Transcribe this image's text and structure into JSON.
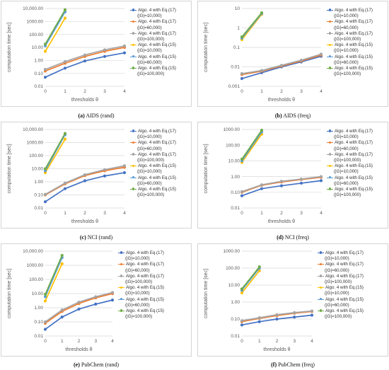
{
  "colors": {
    "eq17_10000": "#4472c4",
    "eq17_60000": "#ed7d31",
    "eq17_100000": "#a5a5a5",
    "eq15_10000": "#ffc000",
    "eq15_60000": "#5b9bd5",
    "eq15_100000": "#70ad47",
    "grid": "#d9d9d9",
    "border": "#d4d4d4"
  },
  "chart_data": [
    {
      "type": "line",
      "label": "(a)",
      "caption": "AIDS (rand)",
      "xlabel": "thresholds  θ",
      "ylabel": "computation time [sec]",
      "x": [
        0,
        1,
        2,
        3,
        4
      ],
      "ylog": true,
      "ylim": [
        0.01,
        10000
      ],
      "yticks": [
        0.01,
        0.1,
        1,
        10,
        100,
        1000,
        10000
      ],
      "ytick_labels": [
        "0.01",
        "0.10",
        "1.00",
        "10.00",
        "100.00",
        "1000.00",
        "10,000.00"
      ],
      "series": [
        {
          "name_line1": "Algo. 4 with Eq.(17)",
          "name_line2": "(|G|=10,000)",
          "values": [
            0.05,
            0.25,
            0.9,
            2.0,
            3.8
          ]
        },
        {
          "name_line1": "Algo. 4 with Eq.(17)",
          "name_line2": "(|G|=60,000)",
          "values": [
            0.15,
            0.6,
            2.0,
            5.0,
            10.0
          ]
        },
        {
          "name_line1": "Algo. 4 with Eq.(17)",
          "name_line2": "(|G|=100,000)",
          "values": [
            0.2,
            0.8,
            2.6,
            6.5,
            13.0
          ]
        },
        {
          "name_line1": "Algo. 4 with Eq.(15)",
          "name_line2": "(|G|=10,000)",
          "values": [
            5.0,
            1800.0,
            null,
            null,
            null
          ]
        },
        {
          "name_line1": "Algo. 4 with Eq.(15)",
          "name_line2": "(|G|=60,000)",
          "values": [
            13.0,
            5500.0,
            null,
            null,
            null
          ]
        },
        {
          "name_line1": "Algo. 4 with Eq.(15)",
          "name_line2": "(|G|=100,000)",
          "values": [
            18.0,
            8000.0,
            null,
            null,
            null
          ]
        }
      ]
    },
    {
      "type": "line",
      "label": "(b)",
      "caption": "AIDS (freq)",
      "xlabel": "thresholds  θ",
      "ylabel": "computation time [sec]",
      "x": [
        0,
        1,
        2,
        3,
        4
      ],
      "ylog": true,
      "ylim": [
        0.001,
        10
      ],
      "yticks": [
        0.001,
        0.01,
        0.1,
        1,
        10
      ],
      "ytick_labels": [
        "0.001",
        "0.01",
        "0.1",
        "1",
        "10"
      ],
      "series": [
        {
          "name_line1": "Algo. 4 with Eq.(17)",
          "name_line2": "(|G|=10,000)",
          "values": [
            0.0025,
            0.005,
            0.01,
            0.018,
            0.035
          ]
        },
        {
          "name_line1": "Algo. 4 with Eq.(17)",
          "name_line2": "(|G|=60,000)",
          "values": [
            0.004,
            0.006,
            0.011,
            0.02,
            0.04
          ]
        },
        {
          "name_line1": "Algo. 4 with Eq.(17)",
          "name_line2": "(|G|=100,000)",
          "values": [
            0.0045,
            0.0065,
            0.012,
            0.022,
            0.045
          ]
        },
        {
          "name_line1": "Algo. 4 with Eq.(15)",
          "name_line2": "(|G|=10,000)",
          "values": [
            0.25,
            5.0,
            null,
            null,
            null
          ]
        },
        {
          "name_line1": "Algo. 4 with Eq.(15)",
          "name_line2": "(|G|=60,000)",
          "values": [
            0.3,
            5.5,
            null,
            null,
            null
          ]
        },
        {
          "name_line1": "Algo. 4 with Eq.(15)",
          "name_line2": "(|G|=100,000)",
          "values": [
            0.35,
            6.0,
            null,
            null,
            null
          ]
        }
      ]
    },
    {
      "type": "line",
      "label": "(c)",
      "caption": "NCI (rand)",
      "xlabel": "thresholds  θ",
      "ylabel": "computation time [sec]",
      "x": [
        0,
        1,
        2,
        3,
        4
      ],
      "ylog": true,
      "ylim": [
        0.01,
        10000
      ],
      "yticks": [
        0.01,
        0.1,
        1,
        10,
        100,
        1000,
        10000
      ],
      "ytick_labels": [
        "0.01",
        "0.10",
        "1.00",
        "10.00",
        "100.00",
        "1000.00",
        "10,000.00"
      ],
      "series": [
        {
          "name_line1": "Algo. 4 with Eq.(17)",
          "name_line2": "(|G|=10,000)",
          "values": [
            0.03,
            0.3,
            1.2,
            2.8,
            5.0
          ]
        },
        {
          "name_line1": "Algo. 4 with Eq.(17)",
          "name_line2": "(|G|=60,000)",
          "values": [
            0.1,
            0.7,
            3.0,
            7.0,
            13.0
          ]
        },
        {
          "name_line1": "Algo. 4 with Eq.(17)",
          "name_line2": "(|G|=100,000)",
          "values": [
            0.11,
            0.8,
            3.5,
            8.5,
            17.0
          ]
        },
        {
          "name_line1": "Algo. 4 with Eq.(15)",
          "name_line2": "(|G|=10,000)",
          "values": [
            5.0,
            1800.0,
            null,
            null,
            null
          ]
        },
        {
          "name_line1": "Algo. 4 with Eq.(15)",
          "name_line2": "(|G|=60,000)",
          "values": [
            7.0,
            4000.0,
            null,
            null,
            null
          ]
        },
        {
          "name_line1": "Algo. 4 with Eq.(15)",
          "name_line2": "(|G|=100,000)",
          "values": [
            10.0,
            5000.0,
            null,
            null,
            null
          ]
        }
      ]
    },
    {
      "type": "line",
      "label": "(d)",
      "caption": "NCI (freq)",
      "xlabel": "thresholds  θ",
      "ylabel": "computation time [sec]",
      "x": [
        0,
        1,
        2,
        3,
        4
      ],
      "ylog": true,
      "ylim": [
        0.01,
        1000
      ],
      "yticks": [
        0.01,
        0.1,
        1,
        10,
        100,
        1000
      ],
      "ytick_labels": [
        "0.01",
        "0.10",
        "1.00",
        "10.00",
        "100.00",
        "1000.00"
      ],
      "series": [
        {
          "name_line1": "Algo. 4 with Eq.(17)",
          "name_line2": "(|G|=10,000)",
          "values": [
            0.06,
            0.17,
            0.26,
            0.38,
            0.55
          ]
        },
        {
          "name_line1": "Algo. 4 with Eq.(17)",
          "name_line2": "(|G|=60,000)",
          "values": [
            0.1,
            0.28,
            0.45,
            0.65,
            0.9
          ]
        },
        {
          "name_line1": "Algo. 4 with Eq.(17)",
          "name_line2": "(|G|=100,000)",
          "values": [
            0.11,
            0.3,
            0.5,
            0.7,
            1.0
          ]
        },
        {
          "name_line1": "Algo. 4 with Eq.(15)",
          "name_line2": "(|G|=10,000)",
          "values": [
            8.0,
            500.0,
            null,
            null,
            null
          ]
        },
        {
          "name_line1": "Algo. 4 with Eq.(15)",
          "name_line2": "(|G|=60,000)",
          "values": [
            10.0,
            700.0,
            null,
            null,
            null
          ]
        },
        {
          "name_line1": "Algo. 4 with Eq.(15)",
          "name_line2": "(|G|=100,000)",
          "values": [
            13.0,
            900.0,
            null,
            null,
            null
          ]
        }
      ]
    },
    {
      "type": "line",
      "label": "(e)",
      "caption": "PubChem (rand)",
      "xlabel": "thresholds  θ",
      "ylabel": "computation time [sec]",
      "x": [
        0,
        1,
        2,
        3,
        4
      ],
      "ylog": true,
      "ylim": [
        0.01,
        10000
      ],
      "yticks": [
        0.01,
        0.1,
        1,
        10,
        100,
        1000,
        10000
      ],
      "ytick_labels": [
        "0.01",
        "0.10",
        "1.00",
        "10.00",
        "100.00",
        "1000.00",
        "10,000.00"
      ],
      "series": [
        {
          "name_line1": "Algo. 4 with Eq.(17)",
          "name_line2": "(|G|=10,000)",
          "values": [
            0.03,
            0.22,
            0.8,
            1.8,
            3.5
          ]
        },
        {
          "name_line1": "Algo. 4 with Eq.(17)",
          "name_line2": "(|G|=60,000)",
          "values": [
            0.08,
            0.55,
            2.0,
            5.0,
            10.0
          ]
        },
        {
          "name_line1": "Algo. 4 with Eq.(17)",
          "name_line2": "(|G|=100,000)",
          "values": [
            0.1,
            0.7,
            2.5,
            6.0,
            12.0
          ]
        },
        {
          "name_line1": "Algo. 4 with Eq.(15)",
          "name_line2": "(|G|=10,000)",
          "values": [
            3.0,
            1300.0,
            null,
            null,
            null
          ]
        },
        {
          "name_line1": "Algo. 4 with Eq.(15)",
          "name_line2": "(|G|=60,000)",
          "values": [
            6.0,
            3500.0,
            null,
            null,
            null
          ]
        },
        {
          "name_line1": "Algo. 4 with Eq.(15)",
          "name_line2": "(|G|=100,000)",
          "values": [
            9.0,
            5000.0,
            null,
            null,
            null
          ]
        }
      ]
    },
    {
      "type": "line",
      "label": "(f)",
      "caption": "PubChem (freq)",
      "xlabel": "thresholds  θ",
      "ylabel": "computation time [sec]",
      "x": [
        0,
        1,
        2,
        3,
        4
      ],
      "ylog": true,
      "ylim": [
        0.01,
        1000
      ],
      "yticks": [
        0.01,
        0.1,
        1,
        10,
        100,
        1000
      ],
      "ytick_labels": [
        "0.01",
        "0.10",
        "1.00",
        "10.00",
        "100.00",
        "1000.00"
      ],
      "series": [
        {
          "name_line1": "Algo. 4 with Eq.(17)",
          "name_line2": "(|G|=10,000)",
          "values": [
            0.045,
            0.07,
            0.1,
            0.13,
            0.17
          ]
        },
        {
          "name_line1": "Algo. 4 with Eq.(17)",
          "name_line2": "(|G|=60,000)",
          "values": [
            0.07,
            0.11,
            0.16,
            0.22,
            0.28
          ]
        },
        {
          "name_line1": "Algo. 4 with Eq.(17)",
          "name_line2": "(|G|=100,000)",
          "values": [
            0.08,
            0.12,
            0.18,
            0.24,
            0.3
          ]
        },
        {
          "name_line1": "Algo. 4 with Eq.(15)",
          "name_line2": "(|G|=10,000)",
          "values": [
            3.5,
            70.0,
            null,
            null,
            null
          ]
        },
        {
          "name_line1": "Algo. 4 with Eq.(15)",
          "name_line2": "(|G|=60,000)",
          "values": [
            5.0,
            100.0,
            null,
            null,
            null
          ]
        },
        {
          "name_line1": "Algo. 4 with Eq.(15)",
          "name_line2": "(|G|=100,000)",
          "values": [
            6.0,
            120.0,
            null,
            null,
            null
          ]
        }
      ]
    }
  ]
}
